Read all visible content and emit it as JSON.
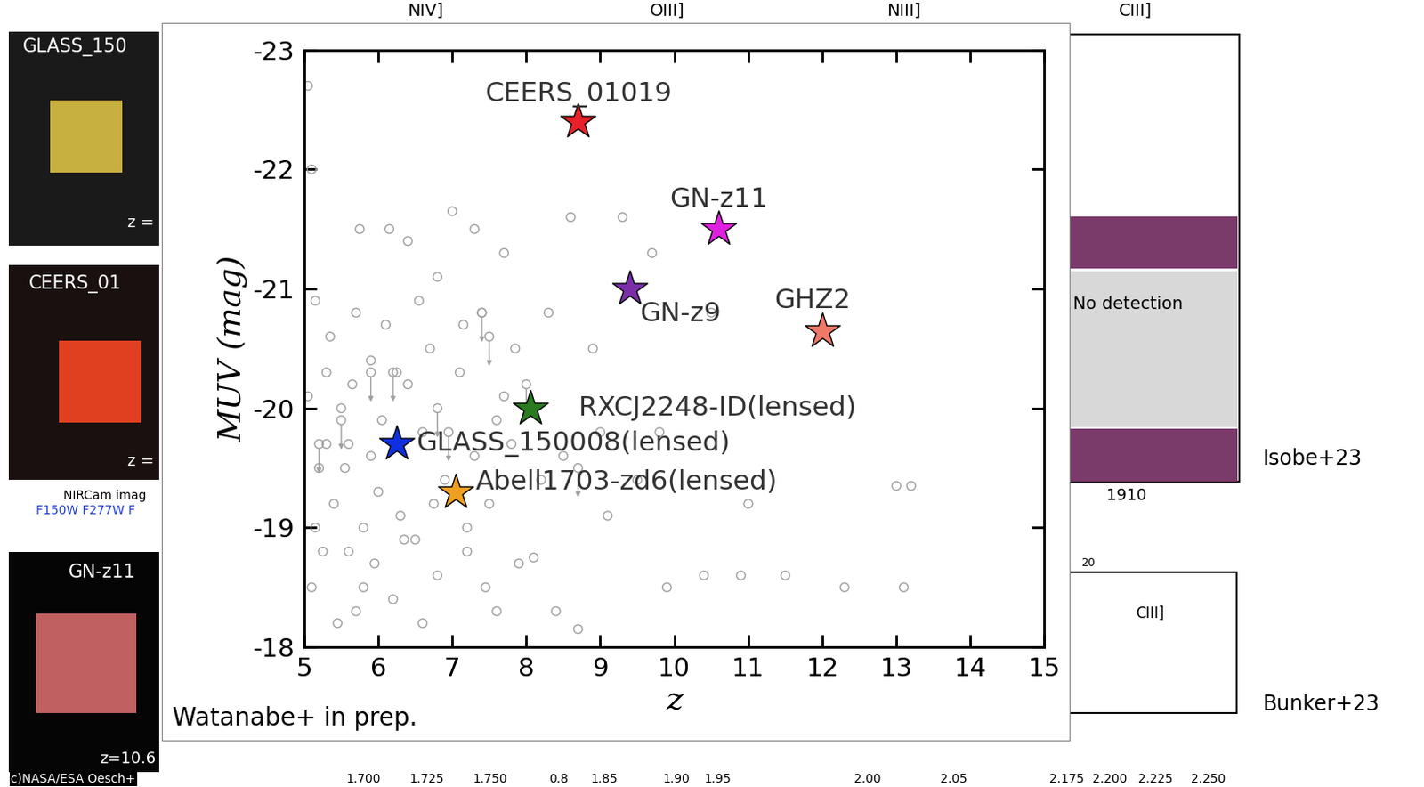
{
  "chart_data": {
    "type": "scatter",
    "xlabel": "z",
    "ylabel": "MUV (mag)",
    "xlim": [
      5,
      15
    ],
    "ylim": [
      -18,
      -23
    ],
    "xticks": [
      5,
      6,
      7,
      8,
      9,
      10,
      11,
      12,
      13,
      14,
      15
    ],
    "yticks": [
      -23,
      -22,
      -21,
      -20,
      -19,
      -18
    ],
    "annotation": "Watanabe+ in prep.",
    "series": [
      {
        "type": "scatter",
        "marker": "circle",
        "color": "#a0a0a0",
        "x": [
          5.05,
          5.1,
          5.15,
          5.2,
          5.3,
          5.1,
          5.25,
          5.4,
          5.5,
          5.6,
          5.7,
          5.8,
          5.9,
          5.35,
          5.45,
          5.55,
          5.65,
          5.75,
          5.95,
          6.0,
          6.1,
          6.2,
          6.3,
          6.4,
          6.5,
          6.6,
          6.7,
          6.8,
          6.9,
          7.0,
          7.1,
          7.2,
          7.3,
          7.4,
          7.5,
          7.6,
          7.7,
          7.8,
          7.9,
          6.15,
          6.4,
          6.8,
          7.3,
          7.7,
          8.1,
          8.3,
          8.5,
          8.6,
          8.7,
          8.9,
          9.1,
          9.3,
          9.5,
          9.8,
          10.4,
          10.5,
          10.9,
          11.0,
          11.5,
          12.3,
          13.0,
          13.2,
          13.1,
          9.7,
          9.0,
          8.4,
          7.2,
          6.6,
          5.8,
          5.3,
          5.15,
          6.05,
          6.35,
          6.75,
          7.45,
          7.85,
          8.2,
          9.9,
          5.6,
          5.9,
          6.25,
          6.55,
          5.05,
          5.7,
          7.15,
          7.6
        ],
        "values": [
          -22.7,
          -22.0,
          -20.9,
          -19.5,
          -20.3,
          -18.5,
          -18.8,
          -19.2,
          -20.0,
          -19.7,
          -18.3,
          -19.0,
          -20.4,
          -20.6,
          -18.2,
          -19.5,
          -20.2,
          -21.5,
          -18.7,
          -19.3,
          -20.7,
          -18.4,
          -19.1,
          -20.2,
          -18.9,
          -19.8,
          -20.5,
          -18.6,
          -19.4,
          -21.65,
          -20.3,
          -18.8,
          -19.6,
          -20.8,
          -19.2,
          -18.3,
          -20.1,
          -19.7,
          -18.7,
          -21.5,
          -21.4,
          -21.1,
          -21.5,
          -21.3,
          -18.75,
          -20.8,
          -19.6,
          -21.6,
          -18.15,
          -20.5,
          -19.1,
          -21.6,
          -19.4,
          -19.8,
          -18.6,
          -20.8,
          -18.6,
          -19.2,
          -18.6,
          -18.5,
          -19.35,
          -19.35,
          -18.5,
          -21.3,
          -19.8,
          -18.3,
          -19.0,
          -18.2,
          -18.5,
          -19.7,
          -19.0,
          -19.9,
          -18.9,
          -19.2,
          -18.5,
          -20.5,
          -19.4,
          -18.5,
          -18.8,
          -19.6,
          -20.3,
          -20.9,
          -20.1,
          -20.8,
          -20.7,
          -19.9
        ]
      },
      {
        "type": "upper_limit",
        "marker": "circle",
        "color": "#a0a0a0",
        "x": [
          5.2,
          5.5,
          5.9,
          6.2,
          6.8,
          6.95,
          7.4,
          7.5,
          8.0,
          8.7
        ],
        "values": [
          -19.7,
          -19.9,
          -20.3,
          -20.3,
          -20.0,
          -19.8,
          -20.8,
          -20.6,
          -20.2,
          -19.5
        ]
      },
      {
        "name": "CEERS_01019",
        "type": "scatter",
        "marker": "star",
        "color": "#e8202a",
        "x": [
          8.7
        ],
        "values": [
          -22.4
        ]
      },
      {
        "name": "GN-z11",
        "type": "scatter",
        "marker": "star",
        "color": "#e020e0",
        "x": [
          10.6
        ],
        "values": [
          -21.5
        ]
      },
      {
        "name": "GN-z9",
        "type": "scatter",
        "marker": "star",
        "color": "#7a2fa8",
        "x": [
          9.4
        ],
        "values": [
          -21.0
        ]
      },
      {
        "name": "GHZ2",
        "type": "scatter",
        "marker": "star",
        "color": "#f07868",
        "x": [
          12.0
        ],
        "values": [
          -20.65
        ]
      },
      {
        "name": "RXCJ2248-ID(lensed)",
        "type": "scatter",
        "marker": "star",
        "color": "#2a7a20",
        "x": [
          8.05
        ],
        "values": [
          -20.0
        ]
      },
      {
        "name": "GLASS_150008(lensed)",
        "type": "scatter",
        "marker": "star",
        "color": "#1030e0",
        "x": [
          6.25
        ],
        "values": [
          -19.7
        ]
      },
      {
        "name": "Abell1703-zd6(lensed)",
        "type": "scatter",
        "marker": "star",
        "color": "#f0a020",
        "x": [
          7.05
        ],
        "values": [
          -19.3
        ]
      }
    ]
  },
  "slide": {
    "image_titles": [
      "GLASS_150",
      "CEERS_01",
      "GN-z11"
    ],
    "image_redshifts": [
      "z =",
      "z =",
      "z=10.6"
    ],
    "image_caption": [
      "NIRCam imag",
      "F150W F277W F"
    ],
    "credit": "c)NASA/ESA Oesch+",
    "line_names": [
      "NIV]",
      "OIII]",
      "NIII]",
      "CIII]"
    ],
    "spectrum_texts": [
      "No detection",
      "1910",
      "CIII]",
      "20"
    ],
    "references": [
      "Isobe+23",
      "Bunker+23"
    ],
    "bottom_ticks": [
      "1.700",
      "1.725",
      "1.750",
      "0.8",
      "1.85",
      "1.90",
      "1.95",
      "2.00",
      "2.05",
      "2.175",
      "2.200",
      "2.225",
      "2.250"
    ]
  }
}
